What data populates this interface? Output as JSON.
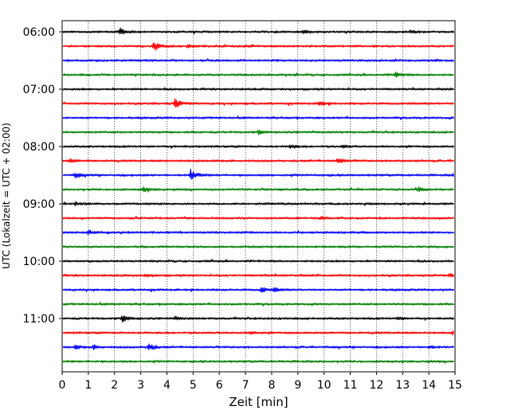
{
  "chart_data": {
    "type": "line",
    "title": "",
    "xlabel": "Zeit  [min]",
    "ylabel": "UTC (Lokalzeit = UTC + 02:00)",
    "xlim": [
      0,
      15
    ],
    "x_ticks": [
      "0",
      "1",
      "2",
      "3",
      "4",
      "5",
      "6",
      "7",
      "8",
      "9",
      "10",
      "11",
      "12",
      "13",
      "14",
      "15"
    ],
    "y_ticks": [
      "06:00",
      "07:00",
      "08:00",
      "09:00",
      "10:00",
      "11:00"
    ],
    "x_grid": true,
    "y_grid": false,
    "trace_interval_minutes": 15,
    "first_trace_time": "06:00",
    "trace_count": 24,
    "trace_colors": [
      "#000000",
      "#ff0000",
      "#0000ff",
      "#008000"
    ],
    "events": [
      {
        "trace": 0,
        "minute": 2.2,
        "amplitude": 1.3
      },
      {
        "trace": 0,
        "minute": 9.2,
        "amplitude": 0.8
      },
      {
        "trace": 0,
        "minute": 13.3,
        "amplitude": 0.6
      },
      {
        "trace": 1,
        "minute": 3.5,
        "amplitude": 1.7
      },
      {
        "trace": 1,
        "minute": 4.8,
        "amplitude": 0.5
      },
      {
        "trace": 3,
        "minute": 12.7,
        "amplitude": 0.9
      },
      {
        "trace": 5,
        "minute": 4.3,
        "amplitude": 1.7
      },
      {
        "trace": 5,
        "minute": 9.8,
        "amplitude": 1.0
      },
      {
        "trace": 7,
        "minute": 7.5,
        "amplitude": 0.8
      },
      {
        "trace": 8,
        "minute": 8.7,
        "amplitude": 0.8
      },
      {
        "trace": 8,
        "minute": 10.7,
        "amplitude": 0.5
      },
      {
        "trace": 9,
        "minute": 0.3,
        "amplitude": 0.6
      },
      {
        "trace": 9,
        "minute": 10.5,
        "amplitude": 1.1
      },
      {
        "trace": 10,
        "minute": 0.5,
        "amplitude": 0.9
      },
      {
        "trace": 10,
        "minute": 4.9,
        "amplitude": 2.3
      },
      {
        "trace": 10,
        "minute": 14.9,
        "amplitude": 0.5
      },
      {
        "trace": 11,
        "minute": 3.1,
        "amplitude": 0.9
      },
      {
        "trace": 11,
        "minute": 13.6,
        "amplitude": 0.7
      },
      {
        "trace": 12,
        "minute": 0.5,
        "amplitude": 0.6
      },
      {
        "trace": 13,
        "minute": 9.9,
        "amplitude": 0.5
      },
      {
        "trace": 14,
        "minute": 1.0,
        "amplitude": 0.8
      },
      {
        "trace": 17,
        "minute": 3.2,
        "amplitude": 0.4
      },
      {
        "trace": 17,
        "minute": 14.8,
        "amplitude": 0.6
      },
      {
        "trace": 18,
        "minute": 7.6,
        "amplitude": 1.0
      },
      {
        "trace": 18,
        "minute": 8.1,
        "amplitude": 0.6
      },
      {
        "trace": 20,
        "minute": 2.3,
        "amplitude": 1.6
      },
      {
        "trace": 20,
        "minute": 4.3,
        "amplitude": 0.5
      },
      {
        "trace": 20,
        "minute": 12.8,
        "amplitude": 0.5
      },
      {
        "trace": 21,
        "minute": 7.2,
        "amplitude": 0.5
      },
      {
        "trace": 21,
        "minute": 14.9,
        "amplitude": 0.5
      },
      {
        "trace": 22,
        "minute": 0.5,
        "amplitude": 0.7
      },
      {
        "trace": 22,
        "minute": 1.2,
        "amplitude": 0.8
      },
      {
        "trace": 22,
        "minute": 3.3,
        "amplitude": 1.5
      },
      {
        "trace": 22,
        "minute": 14.0,
        "amplitude": 0.5
      }
    ]
  }
}
